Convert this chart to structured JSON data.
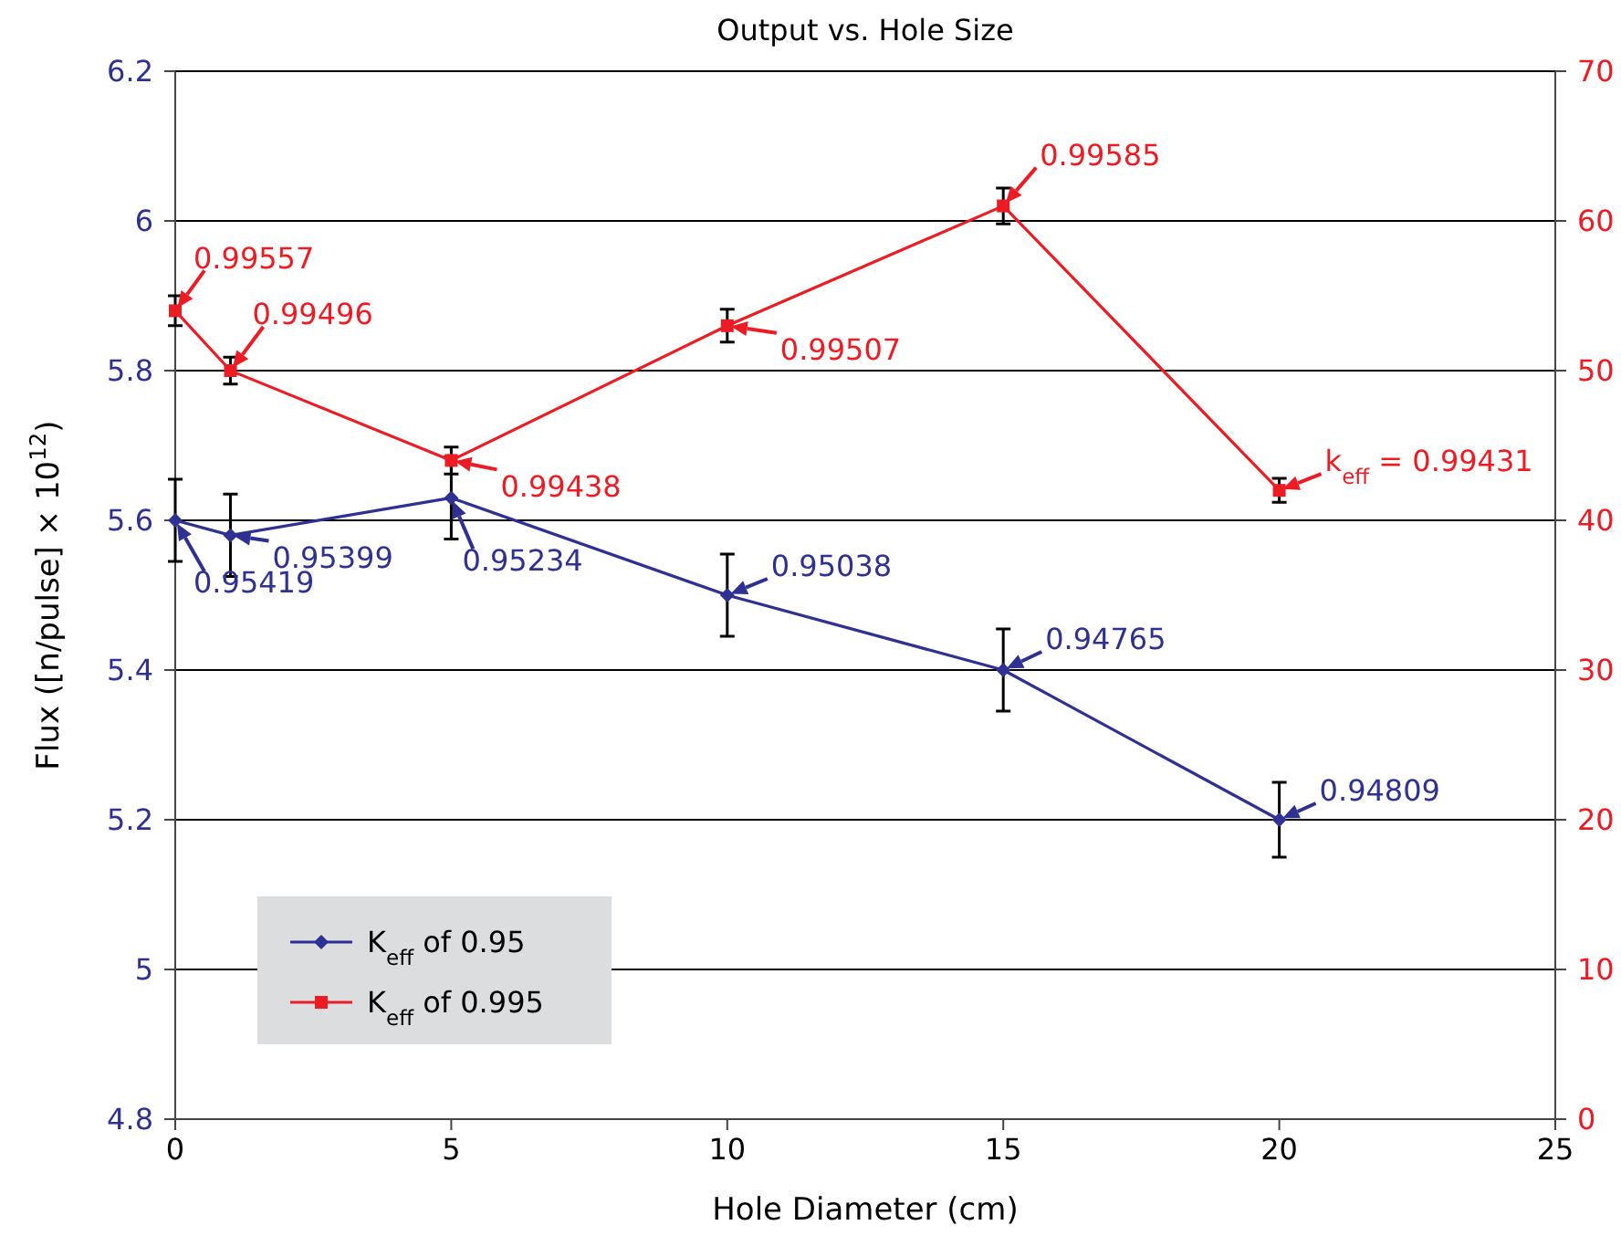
{
  "chart_data": {
    "type": "line",
    "title": "Output vs. Hole Size",
    "xlabel": "Hole Diameter (cm)",
    "ylabel": "Flux ([n/pulse] × 10$^{12}$)",
    "x": [
      0,
      1,
      5,
      10,
      15,
      20
    ],
    "xlim": [
      0,
      25
    ],
    "xticks": [
      0,
      5,
      10,
      15,
      20,
      25
    ],
    "ylim": [
      4.8,
      6.2
    ],
    "yticks": [
      4.8,
      5,
      5.2,
      5.4,
      5.6,
      5.8,
      6,
      6.2
    ],
    "y2lim": [
      0,
      70
    ],
    "y2ticks": [
      0,
      10,
      20,
      30,
      40,
      50,
      60,
      70
    ],
    "grid": "y",
    "legend": "bottom left",
    "series": [
      {
        "name": "K$_{eff}$ of 0.95",
        "color": "#2e3192",
        "marker": "diamond",
        "values": [
          5.6,
          5.58,
          5.63,
          5.5,
          5.4,
          5.2
        ],
        "errors": [
          0.055,
          0.055,
          0.055,
          0.055,
          0.055,
          0.05
        ]
      },
      {
        "name": "K$_{eff}$ of 0.995",
        "color": "#ed1c24",
        "marker": "square",
        "axis": "y2",
        "values": [
          54,
          50,
          44,
          53,
          61,
          42
        ],
        "errors": [
          1,
          0.9,
          0.9,
          1.1,
          1.2,
          0.8
        ]
      }
    ],
    "annotations": [
      {
        "text": "0.95419",
        "x": 0,
        "y": 5.6
      },
      {
        "text": "0.95399",
        "x": 1,
        "y": 5.58
      },
      {
        "text": "0.95234",
        "x": 5,
        "y": 5.63
      },
      {
        "text": "0.95038",
        "x": 10,
        "y": 5.5
      },
      {
        "text": "0.94765",
        "x": 15,
        "y": 5.4
      },
      {
        "text": "0.94809",
        "x": 20,
        "y": 5.2
      },
      "0.99557",
      "0.99496",
      "0.99438",
      "0.99507",
      "0.99585",
      "k$_{eff}$ = 0.99431"
    ]
  }
}
